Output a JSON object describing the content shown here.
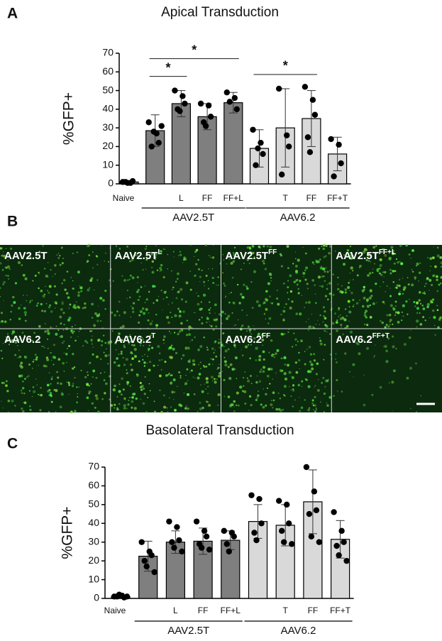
{
  "panels": [
    "A",
    "B",
    "C"
  ],
  "images": [
    {
      "base": "AAV2.5T",
      "sup": null
    },
    {
      "base": "AAV2.5T",
      "sup": "L"
    },
    {
      "base": "AAV2.5T",
      "sup": "FF"
    },
    {
      "base": "AAV2.5T",
      "sup": "FF+L"
    },
    {
      "base": "AAV6.2",
      "sup": null
    },
    {
      "base": "AAV6.2",
      "sup": "T"
    },
    {
      "base": "AAV6.2",
      "sup": "FF"
    },
    {
      "base": "AAV6.2",
      "sup": "FF+T"
    }
  ],
  "chart_data": [
    {
      "type": "bar",
      "title": "Apical Transduction",
      "y_label": "%GFP+",
      "categories": [
        "Naive",
        null,
        "L",
        "FF",
        "FF+L",
        null,
        "T",
        "FF",
        "FF+T"
      ],
      "groups": [
        {
          "label": "AAV2.5T",
          "from": 1,
          "to": 4
        },
        {
          "label": "AAV6.2",
          "from": 5,
          "to": 8
        }
      ],
      "values": [
        1,
        28.5,
        43,
        36,
        43.5,
        19,
        30,
        35,
        16
      ],
      "errors": [
        0.5,
        8.5,
        7,
        7,
        5.5,
        10,
        21,
        15,
        9
      ],
      "points": [
        [
          1,
          0.5,
          1.5,
          1,
          0.5
        ],
        [
          33,
          27,
          22,
          20,
          28,
          31
        ],
        [
          50,
          47,
          43,
          40,
          39
        ],
        [
          43,
          42,
          36,
          33,
          31
        ],
        [
          49,
          46,
          40,
          44
        ],
        [
          29,
          22,
          16,
          10,
          19
        ],
        [
          51,
          26,
          20,
          5
        ],
        [
          52,
          45,
          37,
          25,
          17
        ],
        [
          24,
          21,
          11,
          4
        ]
      ],
      "colors": [
        "#7f7f7f",
        "#7f7f7f",
        "#7f7f7f",
        "#7f7f7f",
        "#7f7f7f",
        "#d9d9d9",
        "#d9d9d9",
        "#d9d9d9",
        "#d9d9d9"
      ],
      "significance": [
        {
          "from": 1,
          "to": 2,
          "label": "*"
        },
        {
          "from": 1,
          "to": 4,
          "label": "*"
        },
        {
          "from": 5,
          "to": 7,
          "label": "*"
        }
      ],
      "ylim": [
        0,
        70
      ],
      "yticks": [
        0,
        10,
        20,
        30,
        40,
        50,
        60,
        70
      ],
      "grid": false
    },
    {
      "type": "bar",
      "title": "Basolateral Transduction",
      "y_label": "%GFP+",
      "categories": [
        "Naive",
        null,
        "L",
        "FF",
        "FF+L",
        null,
        "T",
        "FF",
        "FF+T"
      ],
      "groups": [
        {
          "label": "AAV2.5T",
          "from": 1,
          "to": 4
        },
        {
          "label": "AAV6.2",
          "from": 5,
          "to": 8
        }
      ],
      "values": [
        1,
        22.5,
        30,
        30.5,
        31,
        41,
        39,
        51.5,
        31.5
      ],
      "errors": [
        0.5,
        8,
        6,
        7,
        5,
        9,
        11,
        17,
        10
      ],
      "points": [
        [
          1,
          1.5,
          0.5,
          1,
          2,
          1
        ],
        [
          30,
          25,
          23,
          20,
          17,
          14
        ],
        [
          41,
          38,
          31,
          30,
          27,
          25
        ],
        [
          41,
          36,
          33,
          29,
          27,
          26
        ],
        [
          36,
          35,
          33,
          29,
          25
        ],
        [
          55,
          53,
          40,
          35,
          31
        ],
        [
          52,
          50,
          40,
          36,
          30,
          29
        ],
        [
          70,
          57,
          47,
          45,
          33,
          30
        ],
        [
          46,
          36,
          30,
          28,
          23,
          20
        ]
      ],
      "colors": [
        "#7f7f7f",
        "#7f7f7f",
        "#7f7f7f",
        "#7f7f7f",
        "#7f7f7f",
        "#d9d9d9",
        "#d9d9d9",
        "#d9d9d9",
        "#d9d9d9"
      ],
      "significance": [],
      "ylim": [
        0,
        70
      ],
      "yticks": [
        0,
        10,
        20,
        30,
        40,
        50,
        60,
        70
      ],
      "grid": false
    }
  ]
}
